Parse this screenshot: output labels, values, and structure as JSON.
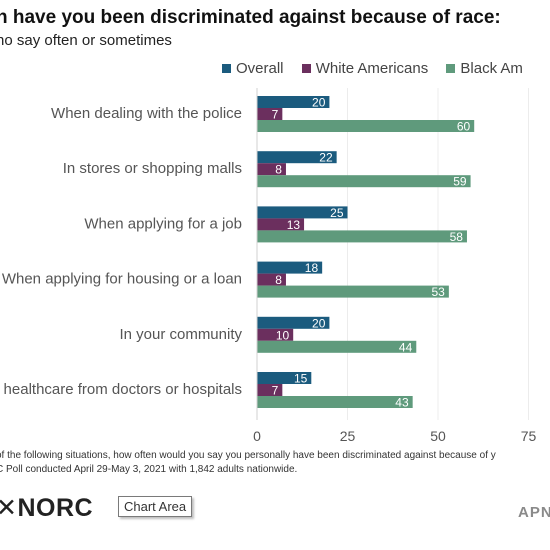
{
  "chart_data": {
    "type": "bar",
    "orientation": "horizontal",
    "title": "n have you been discriminated against because of race:",
    "subtitle": "ho say often or sometimes",
    "categories": [
      "When dealing with the police",
      "In stores or shopping malls",
      "When applying for a job",
      "When applying for housing or a loan",
      "In your community",
      "healthcare from doctors or hospitals"
    ],
    "series": [
      {
        "name": "Overall",
        "color": "#1b5b7e",
        "values": [
          20,
          22,
          25,
          18,
          20,
          15
        ]
      },
      {
        "name": "White Americans",
        "color": "#6b2f5e",
        "values": [
          7,
          8,
          13,
          8,
          10,
          7
        ]
      },
      {
        "name": "Black Americans",
        "color": "#5f9a7c",
        "values": [
          60,
          59,
          58,
          53,
          44,
          43
        ]
      }
    ],
    "legend_labels": [
      "Overall",
      "White Americans",
      "Black Am"
    ],
    "xticks": [
      "0",
      "25",
      "50",
      "75"
    ],
    "xlim": [
      0,
      75
    ],
    "grid": true,
    "legend_position": "top",
    "xlabel": "",
    "ylabel": ""
  },
  "footnote": {
    "line1": "of the following situations, how often would you say you personally have been discriminated against because of y",
    "line2": "C Poll conducted April 29-May 3, 2021 with 1,842 adults nationwide."
  },
  "logo_text": "✕NORC",
  "tooltip_text": "Chart Area",
  "brand_text": "APN"
}
